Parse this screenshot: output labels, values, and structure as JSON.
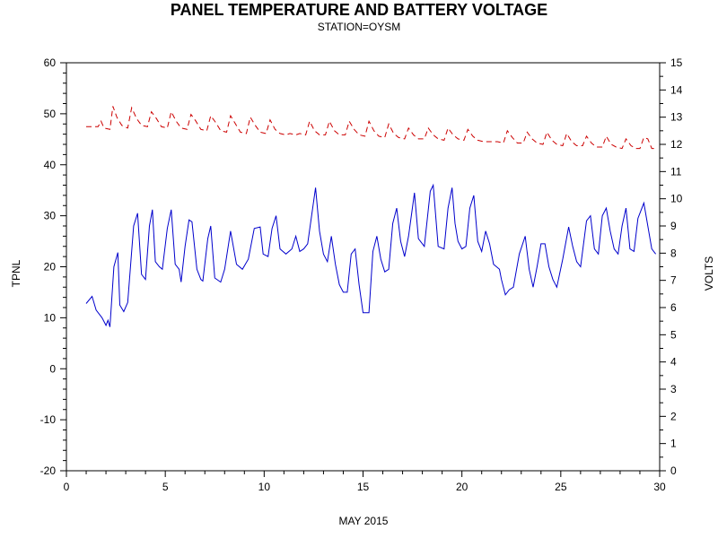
{
  "chart_data": {
    "type": "line",
    "title": "PANEL TEMPERATURE AND BATTERY VOLTAGE",
    "subtitle": "STATION=OYSM",
    "xlabel": "MAY 2015",
    "ylabel_left": "TPNL",
    "ylabel_right": "VOLTS",
    "xlim": [
      0,
      30
    ],
    "ylim_left": [
      -20,
      60
    ],
    "ylim_right": [
      0,
      15
    ],
    "x_ticks": [
      0,
      5,
      10,
      15,
      20,
      25,
      30
    ],
    "y_left_ticks": [
      -20,
      -10,
      0,
      10,
      20,
      30,
      40,
      50,
      60
    ],
    "y_right_ticks": [
      0,
      1,
      2,
      3,
      4,
      5,
      6,
      7,
      8,
      9,
      10,
      11,
      12,
      13,
      14,
      15
    ],
    "grid": false,
    "series": [
      {
        "axis": "left",
        "color": "#0000cc",
        "style": "solid",
        "points": [
          [
            1.0,
            12.8
          ],
          [
            1.3,
            14.2
          ],
          [
            1.5,
            11.5
          ],
          [
            1.8,
            10.0
          ],
          [
            2.0,
            8.5
          ],
          [
            2.1,
            9.5
          ],
          [
            2.2,
            8.2
          ],
          [
            2.4,
            20.0
          ],
          [
            2.6,
            22.8
          ],
          [
            2.7,
            12.5
          ],
          [
            2.9,
            11.2
          ],
          [
            3.1,
            13.0
          ],
          [
            3.4,
            28.0
          ],
          [
            3.6,
            30.5
          ],
          [
            3.8,
            18.5
          ],
          [
            4.0,
            17.5
          ],
          [
            4.2,
            28.0
          ],
          [
            4.35,
            31.2
          ],
          [
            4.5,
            21.0
          ],
          [
            4.7,
            20.0
          ],
          [
            4.85,
            19.5
          ],
          [
            5.1,
            27.5
          ],
          [
            5.3,
            31.2
          ],
          [
            5.5,
            20.5
          ],
          [
            5.7,
            19.5
          ],
          [
            5.8,
            17.0
          ],
          [
            6.0,
            24.0
          ],
          [
            6.2,
            29.2
          ],
          [
            6.35,
            28.8
          ],
          [
            6.6,
            19.5
          ],
          [
            6.8,
            17.5
          ],
          [
            6.9,
            17.2
          ],
          [
            7.15,
            25.5
          ],
          [
            7.3,
            28.0
          ],
          [
            7.5,
            17.8
          ],
          [
            7.8,
            17.0
          ],
          [
            8.0,
            19.5
          ],
          [
            8.3,
            27.0
          ],
          [
            8.6,
            20.5
          ],
          [
            8.9,
            19.5
          ],
          [
            9.2,
            21.5
          ],
          [
            9.5,
            27.5
          ],
          [
            9.8,
            27.8
          ],
          [
            9.95,
            22.5
          ],
          [
            10.2,
            22.0
          ],
          [
            10.4,
            27.5
          ],
          [
            10.6,
            30.0
          ],
          [
            10.8,
            23.5
          ],
          [
            11.1,
            22.5
          ],
          [
            11.4,
            23.5
          ],
          [
            11.6,
            26.0
          ],
          [
            11.8,
            23.0
          ],
          [
            12.0,
            23.5
          ],
          [
            12.2,
            24.5
          ],
          [
            12.4,
            30.0
          ],
          [
            12.6,
            35.5
          ],
          [
            12.8,
            27.0
          ],
          [
            13.0,
            22.5
          ],
          [
            13.2,
            21.0
          ],
          [
            13.4,
            26.0
          ],
          [
            13.6,
            20.5
          ],
          [
            13.8,
            16.5
          ],
          [
            14.0,
            15.0
          ],
          [
            14.2,
            15.0
          ],
          [
            14.4,
            22.5
          ],
          [
            14.6,
            23.5
          ],
          [
            14.8,
            16.5
          ],
          [
            15.0,
            11.0
          ],
          [
            15.3,
            11.0
          ],
          [
            15.5,
            23.0
          ],
          [
            15.7,
            26.0
          ],
          [
            15.9,
            21.5
          ],
          [
            16.1,
            19.0
          ],
          [
            16.3,
            19.5
          ],
          [
            16.5,
            28.5
          ],
          [
            16.7,
            31.5
          ],
          [
            16.9,
            25.0
          ],
          [
            17.1,
            22.0
          ],
          [
            17.3,
            26.0
          ],
          [
            17.6,
            34.5
          ],
          [
            17.8,
            25.5
          ],
          [
            18.1,
            24.0
          ],
          [
            18.4,
            34.8
          ],
          [
            18.55,
            36.0
          ],
          [
            18.8,
            24.0
          ],
          [
            19.1,
            23.5
          ],
          [
            19.3,
            31.5
          ],
          [
            19.5,
            35.5
          ],
          [
            19.65,
            28.5
          ],
          [
            19.8,
            25.0
          ],
          [
            20.0,
            23.5
          ],
          [
            20.2,
            24.0
          ],
          [
            20.4,
            31.5
          ],
          [
            20.6,
            34.0
          ],
          [
            20.8,
            25.0
          ],
          [
            21.0,
            23.0
          ],
          [
            21.2,
            27.0
          ],
          [
            21.4,
            24.5
          ],
          [
            21.6,
            20.5
          ],
          [
            21.9,
            19.5
          ],
          [
            22.0,
            17.5
          ],
          [
            22.2,
            14.5
          ],
          [
            22.4,
            15.5
          ],
          [
            22.6,
            16.0
          ],
          [
            22.9,
            22.5
          ],
          [
            23.2,
            26.0
          ],
          [
            23.4,
            19.5
          ],
          [
            23.6,
            16.0
          ],
          [
            23.8,
            20.0
          ],
          [
            24.0,
            24.5
          ],
          [
            24.2,
            24.5
          ],
          [
            24.4,
            20.0
          ],
          [
            24.6,
            17.5
          ],
          [
            24.8,
            16.0
          ],
          [
            25.1,
            21.5
          ],
          [
            25.4,
            27.8
          ],
          [
            25.6,
            24.0
          ],
          [
            25.8,
            21.0
          ],
          [
            26.0,
            20.0
          ],
          [
            26.3,
            29.0
          ],
          [
            26.5,
            30.0
          ],
          [
            26.7,
            23.5
          ],
          [
            26.9,
            22.5
          ],
          [
            27.1,
            30.0
          ],
          [
            27.3,
            31.5
          ],
          [
            27.5,
            27.0
          ],
          [
            27.7,
            23.5
          ],
          [
            27.9,
            22.5
          ],
          [
            28.1,
            28.0
          ],
          [
            28.3,
            31.5
          ],
          [
            28.5,
            23.5
          ],
          [
            28.7,
            23.0
          ],
          [
            28.9,
            29.5
          ],
          [
            29.2,
            32.5
          ],
          [
            29.4,
            28.0
          ],
          [
            29.6,
            23.5
          ],
          [
            29.8,
            22.5
          ]
        ]
      },
      {
        "axis": "right",
        "color": "#cc0000",
        "style": "dashed",
        "points": [
          [
            1.0,
            12.65
          ],
          [
            1.6,
            12.65
          ],
          [
            1.75,
            12.85
          ],
          [
            1.9,
            12.6
          ],
          [
            2.2,
            12.55
          ],
          [
            2.35,
            13.4
          ],
          [
            2.55,
            13.0
          ],
          [
            2.8,
            12.7
          ],
          [
            3.1,
            12.6
          ],
          [
            3.3,
            13.35
          ],
          [
            3.55,
            12.95
          ],
          [
            3.8,
            12.7
          ],
          [
            4.1,
            12.65
          ],
          [
            4.3,
            13.2
          ],
          [
            4.55,
            12.95
          ],
          [
            4.8,
            12.65
          ],
          [
            5.1,
            12.6
          ],
          [
            5.3,
            13.2
          ],
          [
            5.55,
            12.85
          ],
          [
            5.8,
            12.6
          ],
          [
            6.1,
            12.55
          ],
          [
            6.3,
            13.1
          ],
          [
            6.55,
            12.85
          ],
          [
            6.8,
            12.55
          ],
          [
            7.1,
            12.5
          ],
          [
            7.3,
            13.05
          ],
          [
            7.55,
            12.8
          ],
          [
            7.8,
            12.5
          ],
          [
            8.1,
            12.45
          ],
          [
            8.3,
            13.05
          ],
          [
            8.55,
            12.75
          ],
          [
            8.8,
            12.45
          ],
          [
            9.1,
            12.4
          ],
          [
            9.3,
            13.0
          ],
          [
            9.55,
            12.7
          ],
          [
            9.8,
            12.45
          ],
          [
            10.1,
            12.4
          ],
          [
            10.3,
            12.9
          ],
          [
            10.55,
            12.55
          ],
          [
            10.8,
            12.4
          ],
          [
            11.1,
            12.35
          ],
          [
            11.3,
            12.4
          ],
          [
            11.6,
            12.35
          ],
          [
            11.8,
            12.4
          ],
          [
            12.1,
            12.35
          ],
          [
            12.3,
            12.85
          ],
          [
            12.55,
            12.5
          ],
          [
            12.8,
            12.35
          ],
          [
            13.1,
            12.35
          ],
          [
            13.3,
            12.85
          ],
          [
            13.55,
            12.5
          ],
          [
            13.8,
            12.35
          ],
          [
            14.1,
            12.35
          ],
          [
            14.3,
            12.85
          ],
          [
            14.55,
            12.55
          ],
          [
            14.8,
            12.35
          ],
          [
            15.1,
            12.3
          ],
          [
            15.3,
            12.85
          ],
          [
            15.55,
            12.5
          ],
          [
            15.8,
            12.3
          ],
          [
            16.1,
            12.25
          ],
          [
            16.3,
            12.75
          ],
          [
            16.55,
            12.4
          ],
          [
            16.8,
            12.25
          ],
          [
            17.1,
            12.2
          ],
          [
            17.3,
            12.6
          ],
          [
            17.55,
            12.35
          ],
          [
            17.8,
            12.2
          ],
          [
            18.1,
            12.2
          ],
          [
            18.3,
            12.6
          ],
          [
            18.55,
            12.35
          ],
          [
            18.8,
            12.2
          ],
          [
            19.1,
            12.15
          ],
          [
            19.3,
            12.6
          ],
          [
            19.55,
            12.35
          ],
          [
            19.8,
            12.2
          ],
          [
            20.1,
            12.15
          ],
          [
            20.3,
            12.55
          ],
          [
            20.55,
            12.3
          ],
          [
            20.8,
            12.15
          ],
          [
            21.1,
            12.1
          ],
          [
            21.5,
            12.1
          ],
          [
            21.8,
            12.1
          ],
          [
            22.1,
            12.05
          ],
          [
            22.3,
            12.5
          ],
          [
            22.55,
            12.25
          ],
          [
            22.8,
            12.05
          ],
          [
            23.1,
            12.05
          ],
          [
            23.3,
            12.45
          ],
          [
            23.55,
            12.2
          ],
          [
            23.8,
            12.05
          ],
          [
            24.1,
            12.0
          ],
          [
            24.3,
            12.45
          ],
          [
            24.55,
            12.15
          ],
          [
            24.8,
            12.0
          ],
          [
            25.1,
            11.95
          ],
          [
            25.3,
            12.4
          ],
          [
            25.55,
            12.1
          ],
          [
            25.8,
            11.95
          ],
          [
            26.1,
            11.95
          ],
          [
            26.3,
            12.3
          ],
          [
            26.55,
            12.05
          ],
          [
            26.8,
            11.9
          ],
          [
            27.1,
            11.9
          ],
          [
            27.3,
            12.3
          ],
          [
            27.55,
            12.0
          ],
          [
            27.8,
            11.9
          ],
          [
            28.1,
            11.85
          ],
          [
            28.3,
            12.2
          ],
          [
            28.55,
            11.95
          ],
          [
            28.8,
            11.85
          ],
          [
            29.0,
            11.85
          ],
          [
            29.2,
            12.25
          ],
          [
            29.4,
            12.2
          ],
          [
            29.6,
            11.85
          ],
          [
            29.8,
            11.85
          ]
        ]
      }
    ]
  }
}
